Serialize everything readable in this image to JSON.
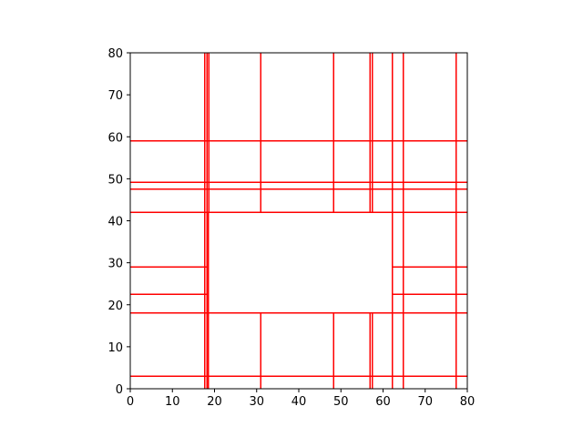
{
  "chart_data": {
    "type": "line",
    "title": "",
    "xlabel": "",
    "ylabel": "",
    "xlim": [
      0,
      80
    ],
    "ylim": [
      0,
      80
    ],
    "aspect": "equal",
    "grid": false,
    "legend": "none",
    "line_color": "#ff0000",
    "axis_color": "#000000",
    "x_ticks": [
      0,
      10,
      20,
      30,
      40,
      50,
      60,
      70,
      80
    ],
    "y_ticks": [
      0,
      10,
      20,
      30,
      40,
      50,
      60,
      70,
      80
    ],
    "series": [
      {
        "kind": "segments",
        "segments": [
          {
            "x": [
              17.7,
              17.7
            ],
            "y": [
              0,
              80
            ]
          },
          {
            "x": [
              18.2,
              18.2
            ],
            "y": [
              0,
              80
            ]
          },
          {
            "x": [
              18.5,
              18.5
            ],
            "y": [
              0,
              42
            ]
          },
          {
            "x": [
              18.7,
              18.7
            ],
            "y": [
              42,
              80
            ]
          },
          {
            "x": [
              31,
              31
            ],
            "y": [
              0,
              18
            ]
          },
          {
            "x": [
              31,
              31
            ],
            "y": [
              42,
              80
            ]
          },
          {
            "x": [
              48.3,
              48.3
            ],
            "y": [
              0,
              18
            ]
          },
          {
            "x": [
              48.3,
              48.3
            ],
            "y": [
              42,
              80
            ]
          },
          {
            "x": [
              56.9,
              56.9
            ],
            "y": [
              0,
              18
            ]
          },
          {
            "x": [
              56.9,
              56.9
            ],
            "y": [
              42,
              80
            ]
          },
          {
            "x": [
              57.5,
              57.5
            ],
            "y": [
              0,
              18
            ]
          },
          {
            "x": [
              57.5,
              57.5
            ],
            "y": [
              42,
              80
            ]
          },
          {
            "x": [
              62.2,
              62.2
            ],
            "y": [
              0,
              80
            ]
          },
          {
            "x": [
              64.8,
              64.8
            ],
            "y": [
              0,
              80
            ]
          },
          {
            "x": [
              77.3,
              77.3
            ],
            "y": [
              0,
              80
            ]
          },
          {
            "x": [
              0,
              80
            ],
            "y": [
              3,
              3
            ]
          },
          {
            "x": [
              0,
              80
            ],
            "y": [
              18,
              18
            ]
          },
          {
            "x": [
              0,
              18.2
            ],
            "y": [
              22.5,
              22.5
            ]
          },
          {
            "x": [
              62.2,
              80
            ],
            "y": [
              22.5,
              22.5
            ]
          },
          {
            "x": [
              0,
              18.2
            ],
            "y": [
              29,
              29
            ]
          },
          {
            "x": [
              62.2,
              80
            ],
            "y": [
              29,
              29
            ]
          },
          {
            "x": [
              0,
              80
            ],
            "y": [
              42,
              42
            ]
          },
          {
            "x": [
              0,
              80
            ],
            "y": [
              47.5,
              47.5
            ]
          },
          {
            "x": [
              0,
              80
            ],
            "y": [
              49.2,
              49.2
            ]
          },
          {
            "x": [
              0,
              80
            ],
            "y": [
              59,
              59
            ]
          }
        ]
      }
    ]
  }
}
